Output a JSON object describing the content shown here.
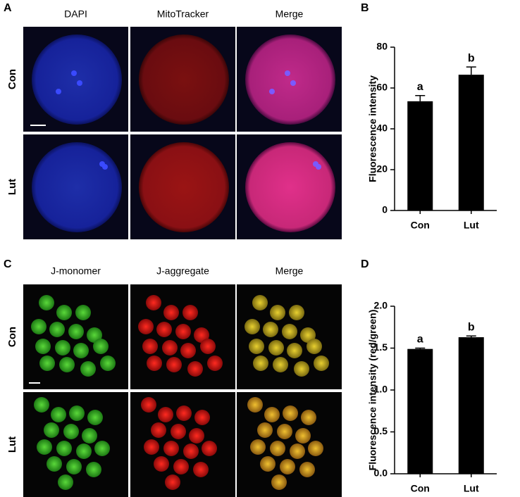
{
  "panels": [
    {
      "label": "A",
      "columns": [
        "DAPI",
        "MitoTracker",
        "Merge"
      ],
      "rows": [
        "Con",
        "Lut"
      ]
    },
    {
      "label": "C",
      "columns": [
        "J-monomer",
        "J-aggregate",
        "Merge"
      ],
      "rows": [
        "Con",
        "Lut"
      ]
    }
  ],
  "chart_data": [
    {
      "type": "bar",
      "label": "B",
      "ylabel": "Fluorescence intensity",
      "categories": [
        "Con",
        "Lut"
      ],
      "values": [
        53.5,
        66.5
      ],
      "errors": [
        2.8,
        3.8
      ],
      "annotations": [
        "a",
        "b"
      ],
      "color": "#000000",
      "ylim": [
        0,
        80
      ],
      "yticks": [
        0,
        20,
        40,
        60,
        80
      ]
    },
    {
      "type": "bar",
      "label": "D",
      "ylabel": "Fluorescence intensity (red/green)",
      "categories": [
        "Con",
        "Lut"
      ],
      "values": [
        1.49,
        1.63
      ],
      "errors": [
        0.01,
        0.015
      ],
      "annotations": [
        "a",
        "b"
      ],
      "color": "#000000",
      "ylim": [
        0,
        2.0
      ],
      "yticks": [
        {
          "value": 0,
          "label": "0.0"
        },
        {
          "value": 0.5,
          "label": "0.5"
        },
        {
          "value": 1,
          "label": "1.0"
        },
        {
          "value": 1.5,
          "label": "1.5"
        },
        {
          "value": 2,
          "label": "2.0"
        }
      ]
    }
  ]
}
